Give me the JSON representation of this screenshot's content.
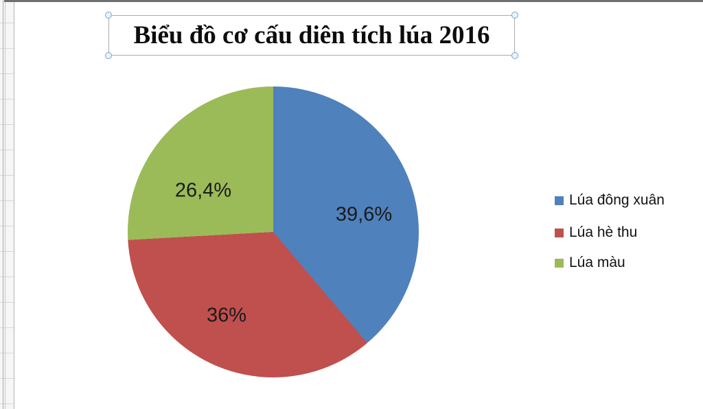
{
  "title": {
    "text": "Biểu đồ cơ cấu diên tích lúa 2016"
  },
  "chart_data": {
    "type": "pie",
    "title": "Biểu đồ cơ cấu diên tích lúa 2016",
    "unit": "%",
    "categories": [
      "Lúa đông xuân",
      "Lúa hè thu",
      "Lúa màu"
    ],
    "values": [
      39.6,
      36,
      26.4
    ],
    "slices": [
      {
        "label": "Lúa đông xuân",
        "value": 39.6,
        "display": "39,6%",
        "color": "#4f81bd"
      },
      {
        "label": "Lúa hè thu",
        "value": 36,
        "display": "36%",
        "color": "#c0504d"
      },
      {
        "label": "Lúa màu",
        "value": 26.4,
        "display": "26,4%",
        "color": "#9bbb59"
      }
    ],
    "start_angle_deg": 0,
    "direction": "clockwise",
    "legend_position": "right",
    "data_labels": "inside"
  }
}
